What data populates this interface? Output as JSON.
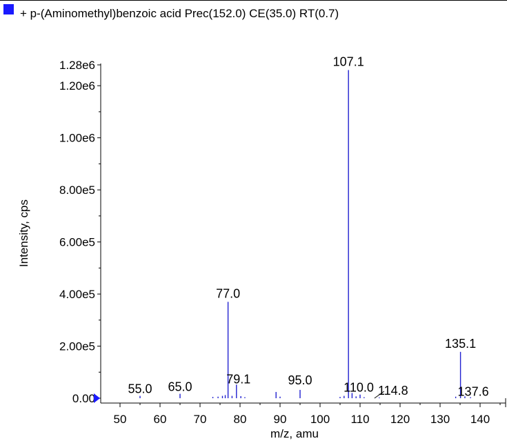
{
  "chart_data": {
    "type": "bar",
    "title": "+ p-(Aminomethyl)benzoic acid Prec(152.0) CE(35.0) RT(0.7)",
    "xlabel": "m/z, amu",
    "ylabel": "Intensity, cps",
    "xlim": [
      43.5,
      146
    ],
    "ylim": [
      0,
      1290000.0
    ],
    "x_ticks": [
      50,
      60,
      70,
      80,
      90,
      100,
      110,
      120,
      130,
      140
    ],
    "x_tick_labels": [
      "50",
      "60",
      "70",
      "80",
      "90",
      "100",
      "110",
      "120",
      "130",
      "140"
    ],
    "y_ticks": [
      0,
      200000,
      400000,
      600000,
      800000,
      1000000,
      1200000,
      1280000
    ],
    "y_tick_labels": [
      "0.00",
      "2.00e5",
      "4.00e5",
      "6.00e5",
      "8.00e5",
      "1.00e6",
      "1.20e6",
      "1.28e6"
    ],
    "peaks": [
      {
        "x": 55.0,
        "y": 9000
      },
      {
        "x": 65.0,
        "y": 17000
      },
      {
        "x": 73.2,
        "y": 5000
      },
      {
        "x": 74.5,
        "y": 6000
      },
      {
        "x": 75.6,
        "y": 9000
      },
      {
        "x": 76.3,
        "y": 12000
      },
      {
        "x": 77.0,
        "y": 370000
      },
      {
        "x": 78.0,
        "y": 9000
      },
      {
        "x": 79.1,
        "y": 52000
      },
      {
        "x": 80.2,
        "y": 8000
      },
      {
        "x": 81.2,
        "y": 4000
      },
      {
        "x": 89.0,
        "y": 24000
      },
      {
        "x": 90.0,
        "y": 6000
      },
      {
        "x": 95.0,
        "y": 32000
      },
      {
        "x": 105.0,
        "y": 5000
      },
      {
        "x": 106.0,
        "y": 9000
      },
      {
        "x": 107.1,
        "y": 1260000
      },
      {
        "x": 108.0,
        "y": 20000
      },
      {
        "x": 109.0,
        "y": 7000
      },
      {
        "x": 110.0,
        "y": 14000
      },
      {
        "x": 111.0,
        "y": 4000
      },
      {
        "x": 114.8,
        "y": 3000
      },
      {
        "x": 133.9,
        "y": 6000
      },
      {
        "x": 135.1,
        "y": 178000
      },
      {
        "x": 136.2,
        "y": 7000
      },
      {
        "x": 137.6,
        "y": 4000
      }
    ],
    "data_labels": [
      {
        "text": "55.0",
        "x": 55.0,
        "y": 9000
      },
      {
        "text": "65.0",
        "x": 65.0,
        "y": 17000
      },
      {
        "text": "77.0",
        "x": 77.0,
        "y": 370000
      },
      {
        "text": "79.1",
        "x": 79.1,
        "y": 52000
      },
      {
        "text": "95.0",
        "x": 95.0,
        "y": 32000
      },
      {
        "text": "107.1",
        "x": 107.1,
        "y": 1260000
      },
      {
        "text": "110.0",
        "x": 110.0,
        "y": 14000
      },
      {
        "text": "114.8",
        "x": 114.8,
        "y": 3000
      },
      {
        "text": "135.1",
        "x": 135.1,
        "y": 178000
      },
      {
        "text": "137.6",
        "x": 137.6,
        "y": 4000
      }
    ],
    "grid": false,
    "colors": {
      "peak": "#2020d0",
      "legend_marker": "#1a1aff",
      "axis": "#000000"
    }
  }
}
